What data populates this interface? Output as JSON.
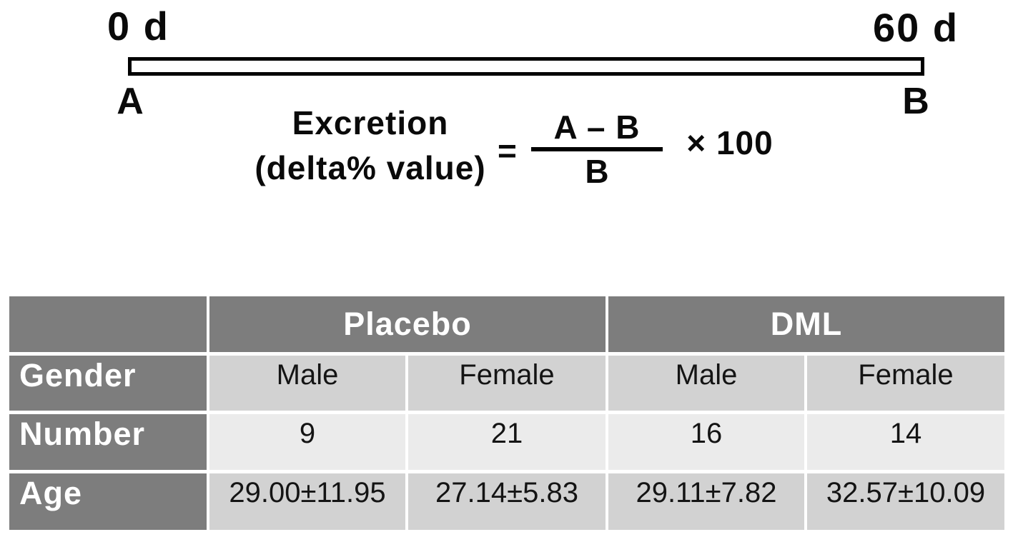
{
  "timeline": {
    "start_day_label": "0 d",
    "end_day_label": "60 d",
    "start_point_label": "A",
    "end_point_label": "B"
  },
  "formula": {
    "lhs_line1": "Excretion",
    "lhs_line2": "(delta% value)",
    "equals_sign": "=",
    "fraction_numerator": "A – B",
    "fraction_denominator": "B",
    "multiplier": "× 100"
  },
  "table": {
    "group_headers": [
      "Placebo",
      "DML"
    ],
    "rows": [
      {
        "label": "Gender",
        "values": [
          "Male",
          "Female",
          "Male",
          "Female"
        ]
      },
      {
        "label": "Number",
        "values": [
          "9",
          "21",
          "16",
          "14"
        ]
      },
      {
        "label": "Age",
        "values": [
          "29.00±11.95",
          "27.14±5.83",
          "29.11±7.82",
          "32.57±10.09"
        ]
      }
    ]
  },
  "colors": {
    "table_header_bg": "#7d7d7d",
    "band_medium_bg": "#d2d2d2",
    "band_light_bg": "#ebebeb",
    "bar_border": "#000000",
    "text_white": "#ffffff",
    "text_black": "#0a0a0a"
  }
}
